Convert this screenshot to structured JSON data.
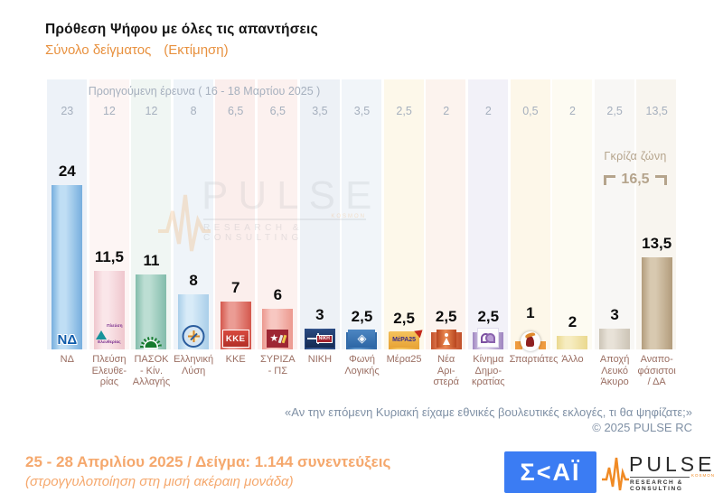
{
  "header": {
    "title": "Πρόθεση Ψήφου με όλες τις απαντήσεις",
    "subtitle": "Σύνολο δείγματος",
    "subtitle_note": "(Εκτίμηση)"
  },
  "chart": {
    "prev_survey_label": "Προηγούμενη έρευνα ( 16 - 18 Μαρτίου 2025 )",
    "gray_zone": {
      "label": "Γκρίζα ζώνη",
      "value": "16,5"
    },
    "question": "«Αν την επόμενη Κυριακή είχαμε εθνικές βουλευτικές εκλογές, τι θα ψηφίζατε;»",
    "copyright": "©  2025  PULSE RC"
  },
  "chart_data": {
    "type": "bar",
    "title": "Πρόθεση Ψήφου με όλες τις απαντήσεις - Σύνολο δείγματος (Εκτίμηση)",
    "categories": [
      "ΝΔ",
      "Πλεύση Ελευθερίας",
      "ΠΑΣΟΚ - Κίν. Αλλαγής",
      "Ελληνική Λύση",
      "ΚΚΕ",
      "ΣΥΡΙΖΑ - ΠΣ",
      "ΝΙΚΗ",
      "Φωνή Λογικής",
      "Μέρα25",
      "Νέα Αριστερά",
      "Κίνημα Δημοκρατίας",
      "Σπαρτιάτες",
      "Άλλο",
      "Αποχή Λευκό Άκυρο",
      "Αναποφάσιστοι / ΔΑ"
    ],
    "series": [
      {
        "name": "Εκτίμηση ( 25 - 28 Απριλίου 2025 )",
        "values": [
          24,
          11.5,
          11,
          8,
          7,
          6,
          3,
          2.5,
          2.5,
          2.5,
          2.5,
          1,
          2,
          3,
          13.5
        ]
      },
      {
        "name": "Προηγούμενη έρευνα ( 16 - 18 Μαρτίου 2025 )",
        "values": [
          23,
          12,
          12,
          8,
          6.5,
          6.5,
          3.5,
          3.5,
          2.5,
          2,
          2,
          0.5,
          2,
          2.5,
          13.5
        ]
      }
    ],
    "gray_zone_total": 16.5,
    "gray_zone_members": [
      "Αποχή Λευκό Άκυρο",
      "Αναποφάσιστοι / ΔΑ"
    ],
    "xlabel": "",
    "ylabel": "%",
    "ylim": [
      0,
      26
    ],
    "grid": false,
    "legend_position": "none",
    "decimal_separator": ","
  },
  "parties": [
    {
      "id": "nd",
      "name": "ΝΔ",
      "label_lines": [
        "ΝΔ"
      ],
      "value_label": "24",
      "prev_label": "23",
      "stripe": "#edf2f8",
      "bar_edge": "#76aede",
      "bar_mid": "#bfdef4",
      "logo_text": "ΝΔ"
    },
    {
      "id": "pleusi",
      "name": "Πλεύση Ελευθερίας",
      "label_lines": [
        "Πλεύση",
        "Ελευθε-",
        "ρίας"
      ],
      "value_label": "11,5",
      "prev_label": "12",
      "stripe": "#fdf5f4",
      "bar_edge": "#efc6cd",
      "bar_mid": "#fae6e9",
      "logo_text": "Πλεύση Ελευθερίας"
    },
    {
      "id": "pasok",
      "name": "ΠΑΣΟΚ - Κίν. Αλλαγής",
      "label_lines": [
        "ΠΑΣΟΚ",
        "- Κίν.",
        "Αλλαγής"
      ],
      "value_label": "11",
      "prev_label": "12",
      "stripe": "#f0f6f3",
      "bar_edge": "#82bcab",
      "bar_mid": "#bcded3",
      "logo_text": ""
    },
    {
      "id": "ellysi",
      "name": "Ελληνική Λύση",
      "label_lines": [
        "Ελληνική",
        "Λύση"
      ],
      "value_label": "8",
      "prev_label": "8",
      "stripe": "#eff4f9",
      "bar_edge": "#a9cee9",
      "bar_mid": "#d8ebf8",
      "logo_text": ""
    },
    {
      "id": "kke",
      "name": "ΚΚΕ",
      "label_lines": [
        "ΚΚΕ"
      ],
      "value_label": "7",
      "prev_label": "6,5",
      "stripe": "#fbeeec",
      "bar_edge": "#d4574c",
      "bar_mid": "#eb9c94",
      "logo_text": "ΚΚΕ"
    },
    {
      "id": "syriza",
      "name": "ΣΥΡΙΖΑ - ΠΣ",
      "label_lines": [
        "ΣΥΡΙΖΑ",
        "- ΠΣ"
      ],
      "value_label": "6",
      "prev_label": "6,5",
      "stripe": "#fcf1ef",
      "bar_edge": "#ec988e",
      "bar_mid": "#f7c7c1",
      "logo_text": "★"
    },
    {
      "id": "niki",
      "name": "ΝΙΚΗ",
      "label_lines": [
        "ΝΙΚΗ"
      ],
      "value_label": "3",
      "prev_label": "3,5",
      "stripe": "#edf1f6",
      "bar_edge": "#24457f",
      "bar_mid": "#3d5c94",
      "logo_text": "ΝΙΚΗ"
    },
    {
      "id": "foni",
      "name": "Φωνή Λογικής",
      "label_lines": [
        "Φωνή",
        "Λογικής"
      ],
      "value_label": "2,5",
      "prev_label": "3,5",
      "stripe": "#f1f5f9",
      "bar_edge": "#2d66a5",
      "bar_mid": "#5b93c9",
      "logo_text": "◈"
    },
    {
      "id": "mera",
      "name": "Μέρα25",
      "label_lines": [
        "Μέρα25"
      ],
      "value_label": "2,5",
      "prev_label": "2,5",
      "stripe": "#fdf8ea",
      "bar_edge": "#e8a336",
      "bar_mid": "#f5c45e",
      "logo_text": "ΜέΡΑ25"
    },
    {
      "id": "nea",
      "name": "Νέα Αριστερά",
      "label_lines": [
        "Νέα",
        "Αρι-",
        "στερά"
      ],
      "value_label": "2,5",
      "prev_label": "2",
      "stripe": "#fcf3ee",
      "bar_edge": "#c1502a",
      "bar_mid": "#e8855c",
      "logo_text": ""
    },
    {
      "id": "kinima",
      "name": "Κίνημα Δημοκρατίας",
      "label_lines": [
        "Κίνημα",
        "Δημο-",
        "κρατίας"
      ],
      "value_label": "2,5",
      "prev_label": "2",
      "stripe": "#f2f1f8",
      "bar_edge": "#9f86c0",
      "bar_mid": "#ded4ec",
      "logo_text": ""
    },
    {
      "id": "spart",
      "name": "Σπαρτιάτες",
      "label_lines": [
        "Σπαρτιάτες"
      ],
      "value_label": "1",
      "prev_label": "0,5",
      "stripe": "#fdf7e9",
      "bar_edge": "#ef9b3e",
      "bar_mid": "#f7b45e",
      "logo_text": ""
    },
    {
      "id": "allo",
      "name": "Άλλο",
      "label_lines": [
        "Άλλο"
      ],
      "value_label": "2",
      "prev_label": "2",
      "stripe": "#fdfbf2",
      "bar_edge": "#ead88e",
      "bar_mid": "#f6ecc0",
      "logo_text": ""
    },
    {
      "id": "apoxi",
      "name": "Αποχή Λευκό Άκυρο",
      "label_lines": [
        "Αποχή",
        "Λευκό",
        "Άκυρο"
      ],
      "value_label": "3",
      "prev_label": "2,5",
      "stripe": "#f8f7f5",
      "bar_edge": "#ccc4b6",
      "bar_mid": "#e8e2d8",
      "logo_text": ""
    },
    {
      "id": "anap",
      "name": "Αναποφάσιστοι / ΔΑ",
      "label_lines": [
        "Αναπο-",
        "φάσιστοι",
        "/ ΔΑ"
      ],
      "value_label": "13,5",
      "prev_label": "13,5",
      "stripe": "#f8f5ef",
      "bar_edge": "#b29c7c",
      "bar_mid": "#d8c9b0",
      "logo_text": ""
    }
  ],
  "footer": {
    "line1": "25 - 28 Απριλίου 2025  /  Δείγμα:  1.144 συνεντεύξεις",
    "line2": "(στρογγυλοποίηση στη μισή ακέραιη μονάδα)"
  },
  "logos": {
    "skai_text": "Σ<ΑΪ",
    "pulse_text": "PULSE",
    "pulse_kosmon": "KOSMON",
    "pulse_sub": "RESEARCH & CONSULTING"
  },
  "watermark": {
    "text": "PULSE",
    "kosmon": "KOSMON",
    "sub": "RESEARCH & CONSULTING"
  },
  "colors": {
    "accent_orange": "#e8913f",
    "footer_orange": "#f5a86d",
    "question_gray": "#7f90a5",
    "prev_gray": "#a6b0be",
    "label_brown": "#9b6f63",
    "grayzone_tan": "#b5a48c",
    "skai_blue": "#3b7cf3",
    "pulse_orange": "#f08a24"
  }
}
